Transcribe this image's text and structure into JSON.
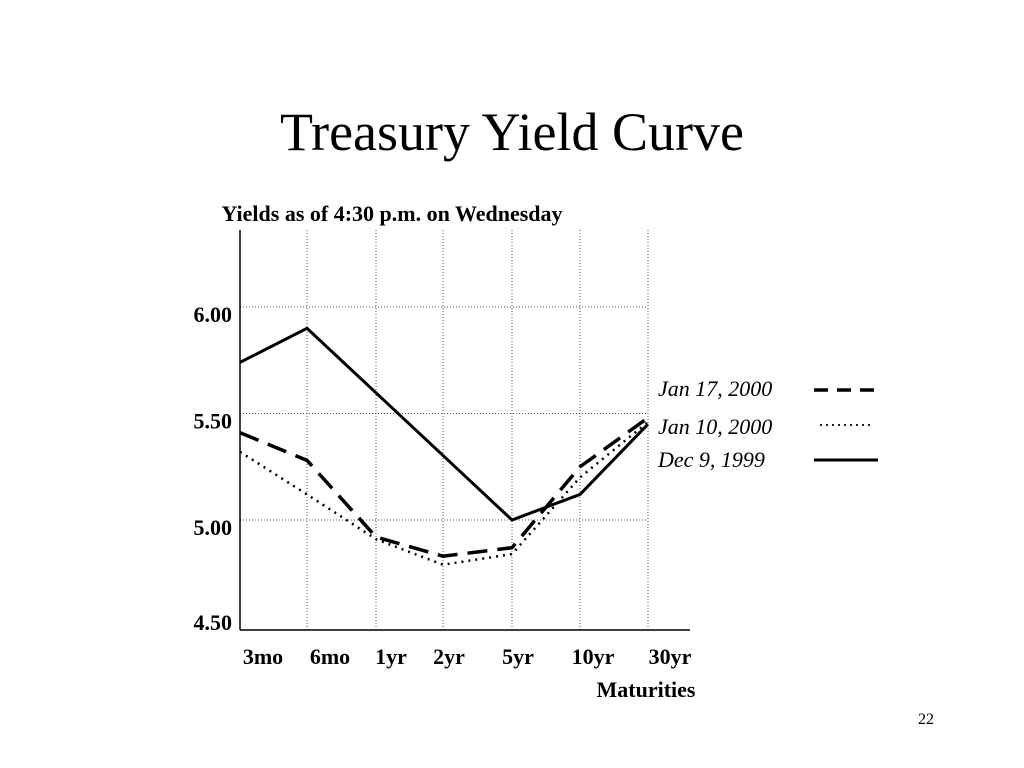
{
  "slide": {
    "title": "Treasury Yield Curve",
    "page_number": "22"
  },
  "chart_data": {
    "type": "line",
    "title": "Treasury Yield Curve",
    "subtitle": "Yields as of 4:30 p.m. on Wednesday",
    "xlabel": "Maturities",
    "ylabel": "",
    "categories": [
      "3mo",
      "6mo",
      "1yr",
      "2yr",
      "5yr",
      "10yr",
      "30yr"
    ],
    "ylim": [
      4.5,
      6.3
    ],
    "yticks": [
      6.0,
      5.5,
      5.0,
      4.5
    ],
    "ytick_labels": [
      "6.00",
      "5.50",
      "5.00",
      "4.50"
    ],
    "grid": true,
    "legend_position": "right",
    "series": [
      {
        "name": "Jan 17, 2000",
        "style": "dashed",
        "color": "#000000",
        "values": [
          5.41,
          5.28,
          4.92,
          4.83,
          4.87,
          5.25,
          5.48
        ]
      },
      {
        "name": "Jan 10, 2000",
        "style": "dotted",
        "color": "#000000",
        "values": [
          5.32,
          5.12,
          4.91,
          4.79,
          4.84,
          5.2,
          5.46
        ]
      },
      {
        "name": "Dec  9, 1999",
        "style": "solid",
        "color": "#000000",
        "values": [
          5.74,
          5.9,
          null,
          null,
          5.0,
          5.12,
          5.45
        ]
      }
    ]
  }
}
